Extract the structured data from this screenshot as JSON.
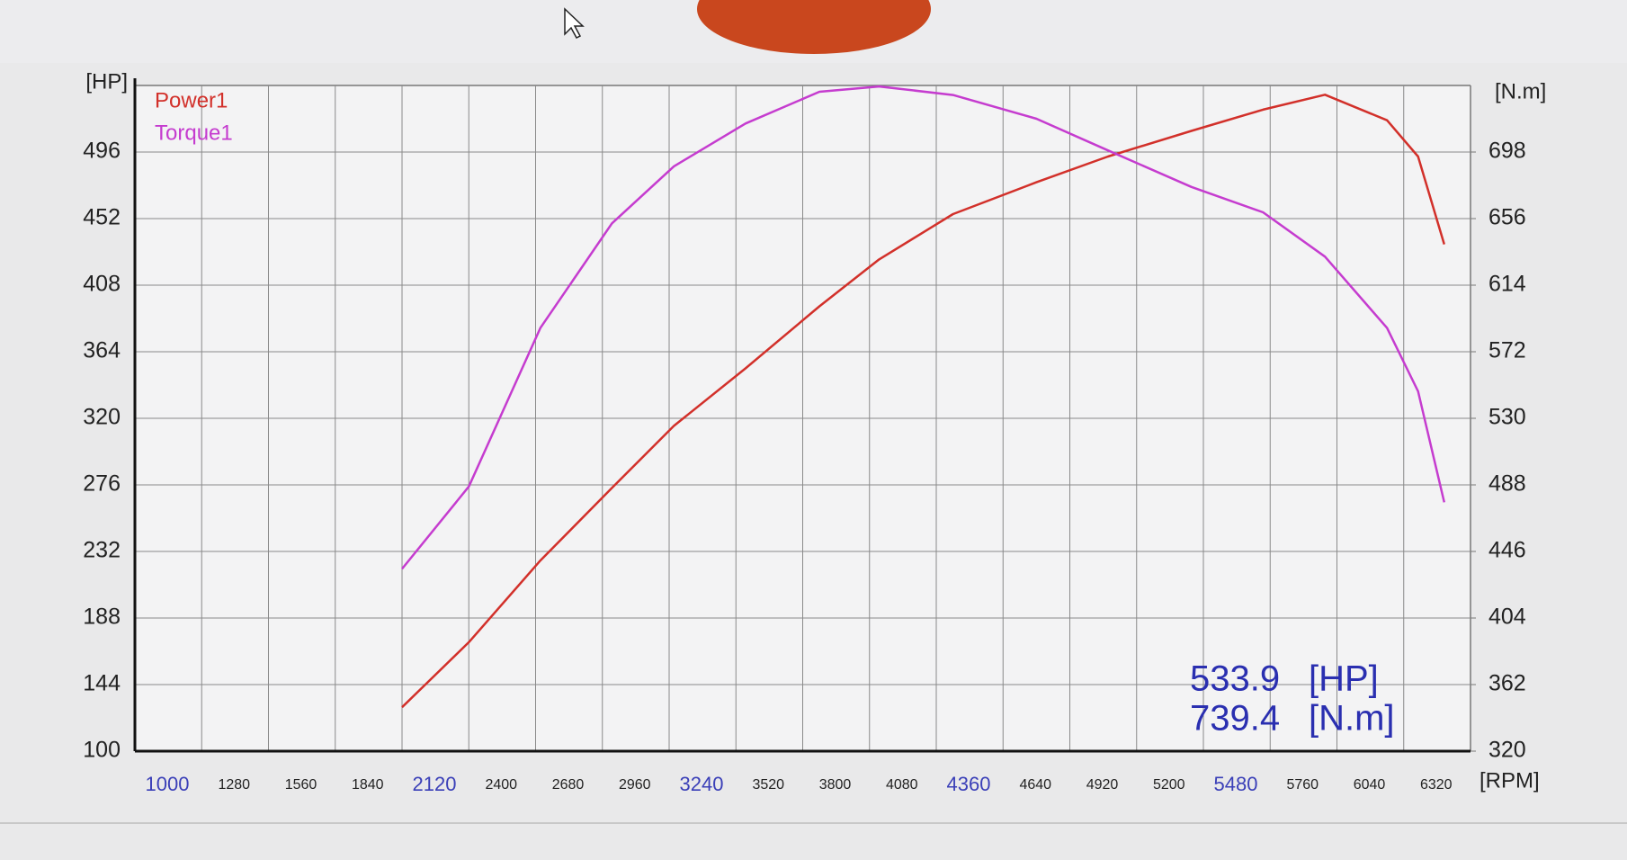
{
  "chart_data": {
    "type": "line",
    "y_unit": "[HP]",
    "y2_unit": "[N.m]",
    "x_unit": "[RPM]",
    "x": [
      2120,
      2400,
      2700,
      3000,
      3260,
      3560,
      3870,
      4120,
      4430,
      4780,
      5080,
      5430,
      5730,
      5990,
      6250,
      6380,
      6490
    ],
    "series": [
      {
        "name": "Power1",
        "color": "#d2302a",
        "values": [
          129,
          172,
          226,
          274,
          315,
          353,
          394,
          425,
          455,
          476,
          493,
          510,
          524,
          533.9,
          517,
          493,
          435
        ]
      },
      {
        "name": "Torque1",
        "color": "#c53ccf",
        "axis": "y2",
        "values": [
          435,
          487,
          587,
          653,
          689,
          716,
          736,
          739.4,
          734,
          719,
          699,
          676,
          660,
          632,
          587,
          547,
          477
        ]
      }
    ],
    "xlim": [
      1000,
      6600
    ],
    "xticks": [
      1000,
      1280,
      1560,
      1840,
      2120,
      2400,
      2680,
      2960,
      3240,
      3520,
      3800,
      4080,
      4360,
      4640,
      4920,
      5200,
      5480,
      5760,
      6040,
      6320
    ],
    "ylim": [
      100,
      540
    ],
    "yticks": [
      100,
      144,
      188,
      232,
      276,
      320,
      364,
      408,
      452,
      496
    ],
    "y2lim": [
      320,
      740
    ],
    "y2ticks": [
      320,
      362,
      404,
      446,
      488,
      530,
      572,
      614,
      656,
      698
    ],
    "grid": true,
    "legend": "top-left",
    "readouts": [
      {
        "value": "533.9",
        "unit": "[HP]"
      },
      {
        "value": "739.4",
        "unit": "[N.m]"
      }
    ]
  }
}
